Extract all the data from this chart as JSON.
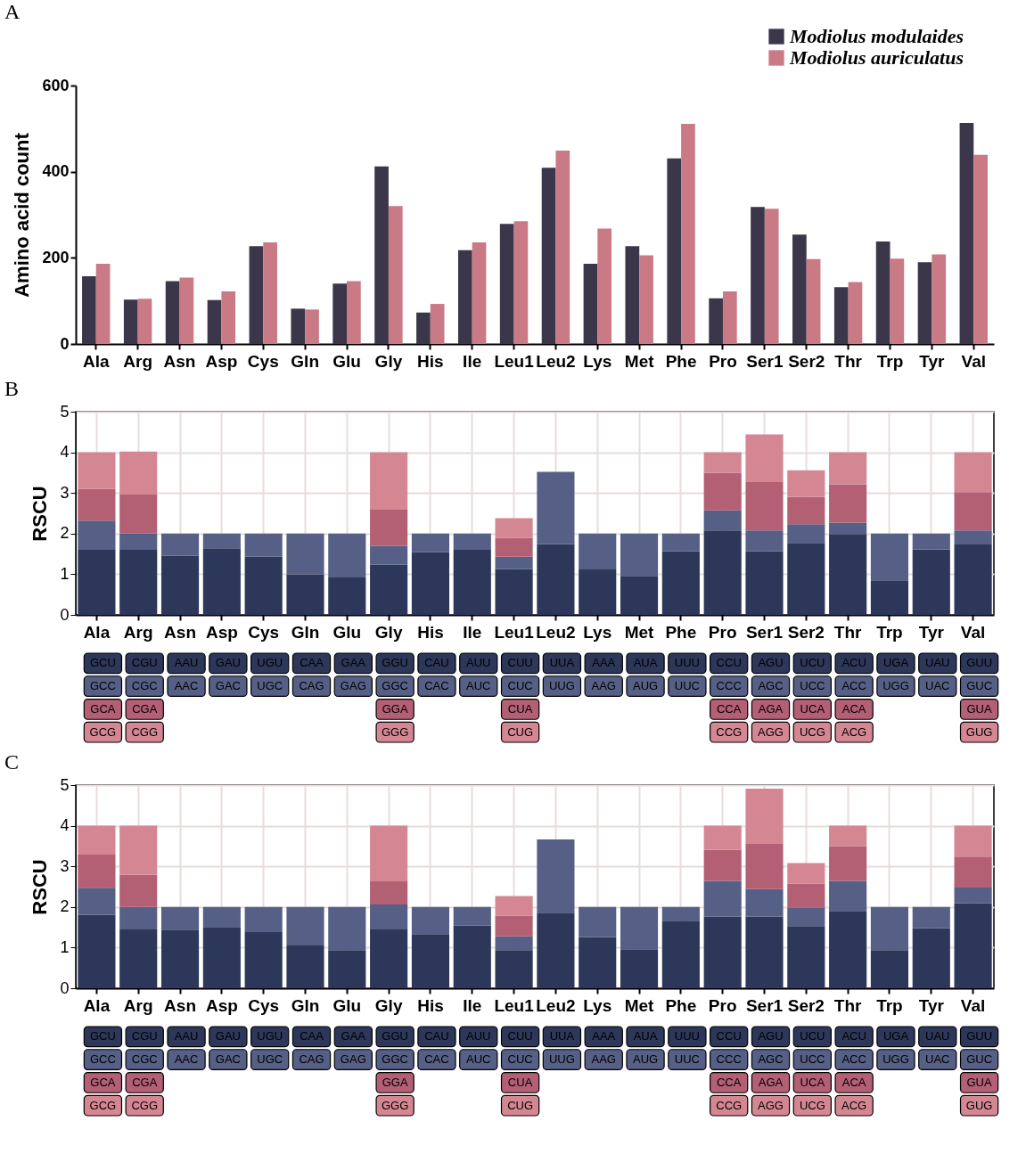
{
  "chart_data": [
    {
      "type": "bar",
      "title": "A",
      "ylabel": "Amino acid count",
      "categories": [
        "Ala",
        "Arg",
        "Asn",
        "Asp",
        "Cys",
        "Gln",
        "Glu",
        "Gly",
        "His",
        "Ile",
        "Leu1",
        "Leu2",
        "Lys",
        "Met",
        "Phe",
        "Pro",
        "Ser1",
        "Ser2",
        "Thr",
        "Trp",
        "Tyr",
        "Val"
      ],
      "series": [
        {
          "name": "Modiolus modulaides",
          "color": "#3b3649",
          "values": [
            157,
            103,
            146,
            102,
            227,
            82,
            140,
            412,
            73,
            218,
            279,
            409,
            186,
            227,
            431,
            106,
            318,
            254,
            132,
            238,
            190,
            513
          ]
        },
        {
          "name": "Modiolus auriculatus",
          "color": "#c97a84",
          "values": [
            186,
            105,
            154,
            122,
            236,
            80,
            146,
            320,
            93,
            236,
            285,
            449,
            268,
            206,
            511,
            122,
            314,
            197,
            144,
            198,
            208,
            439
          ]
        }
      ],
      "ylim": [
        0,
        600
      ],
      "yticks": [
        0,
        200,
        400,
        600
      ],
      "legend": "top right"
    },
    {
      "type": "bar",
      "stacked": true,
      "title": "B",
      "ylabel": "RSCU",
      "categories": [
        "Ala",
        "Arg",
        "Asn",
        "Asp",
        "Cys",
        "Gln",
        "Glu",
        "Gly",
        "His",
        "Ile",
        "Leu1",
        "Leu2",
        "Lys",
        "Met",
        "Phe",
        "Pro",
        "Ser1",
        "Ser2",
        "Thr",
        "Trp",
        "Tyr",
        "Val"
      ],
      "series": [
        {
          "color": "#2c3759",
          "values": [
            1.6,
            1.6,
            1.46,
            1.64,
            1.43,
            1.0,
            0.92,
            1.24,
            1.54,
            1.6,
            1.13,
            1.74,
            1.12,
            0.96,
            1.56,
            2.08,
            1.56,
            1.77,
            1.99,
            0.85,
            1.61,
            1.73
          ]
        },
        {
          "color": "#565f85",
          "values": [
            0.72,
            0.4,
            0.54,
            0.36,
            0.57,
            1.0,
            1.08,
            0.46,
            0.46,
            0.4,
            0.3,
            1.78,
            0.88,
            1.04,
            0.44,
            0.49,
            0.52,
            0.46,
            0.28,
            1.15,
            0.39,
            0.35
          ]
        },
        {
          "color": "#b35f74",
          "values": [
            0.78,
            0.96,
            null,
            null,
            null,
            null,
            null,
            0.89,
            null,
            null,
            0.46,
            null,
            null,
            null,
            null,
            0.93,
            1.19,
            0.67,
            0.94,
            null,
            null,
            0.94
          ]
        },
        {
          "color": "#d48793",
          "values": [
            0.9,
            1.06,
            null,
            null,
            null,
            null,
            null,
            1.41,
            null,
            null,
            0.49,
            null,
            null,
            null,
            null,
            0.5,
            1.17,
            0.66,
            0.79,
            null,
            null,
            0.98
          ]
        }
      ],
      "ylim": [
        0,
        5
      ],
      "yticks": [
        0,
        1,
        2,
        3,
        4,
        5
      ],
      "grid": true
    },
    {
      "type": "other",
      "colors": [
        "#2c3759",
        "#565f85",
        "#b35f74",
        "#d48793"
      ],
      "cell_labels": [
        [
          "GCU",
          "CGU",
          "AAU",
          "GAU",
          "UGU",
          "CAA",
          "GAA",
          "GGU",
          "CAU",
          "AUU",
          "CUU",
          "UUA",
          "AAA",
          "AUA",
          "UUU",
          "CCU",
          "AGU",
          "UCU",
          "ACU",
          "UGA",
          "UAU",
          "GUU"
        ],
        [
          "GCC",
          "CGC",
          "AAC",
          "GAC",
          "UGC",
          "CAG",
          "GAG",
          "GGC",
          "CAC",
          "AUC",
          "CUC",
          "UUG",
          "AAG",
          "AUG",
          "UUC",
          "CCC",
          "AGC",
          "UCC",
          "ACC",
          "UGG",
          "UAC",
          "GUC"
        ],
        [
          "GCA",
          "CGA",
          null,
          null,
          null,
          null,
          null,
          "GGA",
          null,
          null,
          "CUA",
          null,
          null,
          null,
          null,
          "CCA",
          "AGA",
          "UCA",
          "ACA",
          null,
          null,
          "GUA"
        ],
        [
          "GCG",
          "CGG",
          null,
          null,
          null,
          null,
          null,
          "GGG",
          null,
          null,
          "CUG",
          null,
          null,
          null,
          null,
          "CCG",
          "AGG",
          "UCG",
          "ACG",
          null,
          null,
          "GUG"
        ]
      ]
    },
    {
      "type": "bar",
      "stacked": true,
      "title": "C",
      "ylabel": "RSCU",
      "categories": [
        "Ala",
        "Arg",
        "Asn",
        "Asp",
        "Cys",
        "Gln",
        "Glu",
        "Gly",
        "His",
        "Ile",
        "Leu1",
        "Leu2",
        "Lys",
        "Met",
        "Phe",
        "Pro",
        "Ser1",
        "Ser2",
        "Thr",
        "Trp",
        "Tyr",
        "Val"
      ],
      "series": [
        {
          "color": "#2c3759",
          "values": [
            1.81,
            1.45,
            1.44,
            1.51,
            1.38,
            1.05,
            0.94,
            1.45,
            1.33,
            1.54,
            0.94,
            1.86,
            1.26,
            0.96,
            1.66,
            1.76,
            1.76,
            1.53,
            1.9,
            0.94,
            1.48,
            2.09
          ]
        },
        {
          "color": "#565f85",
          "values": [
            0.66,
            0.55,
            0.56,
            0.49,
            0.62,
            0.95,
            1.06,
            0.61,
            0.67,
            0.46,
            0.34,
            1.8,
            0.74,
            1.04,
            0.34,
            0.88,
            0.68,
            0.46,
            0.74,
            1.06,
            0.52,
            0.39
          ]
        },
        {
          "color": "#b35f74",
          "values": [
            0.82,
            0.79,
            null,
            null,
            null,
            null,
            null,
            0.57,
            null,
            null,
            0.51,
            null,
            null,
            null,
            null,
            0.77,
            1.11,
            0.58,
            0.86,
            null,
            null,
            0.76
          ]
        },
        {
          "color": "#d48793",
          "values": [
            0.71,
            1.21,
            null,
            null,
            null,
            null,
            null,
            1.37,
            null,
            null,
            0.48,
            null,
            null,
            null,
            null,
            0.59,
            1.36,
            0.51,
            0.5,
            null,
            null,
            0.76
          ]
        }
      ],
      "ylim": [
        0,
        5
      ],
      "yticks": [
        0,
        1,
        2,
        3,
        4,
        5
      ],
      "grid": true
    },
    {
      "type": "other",
      "colors": [
        "#2c3759",
        "#565f85",
        "#b35f74",
        "#d48793"
      ],
      "cell_labels": [
        [
          "GCU",
          "CGU",
          "AAU",
          "GAU",
          "UGU",
          "CAA",
          "GAA",
          "GGU",
          "CAU",
          "AUU",
          "CUU",
          "UUA",
          "AAA",
          "AUA",
          "UUU",
          "CCU",
          "AGU",
          "UCU",
          "ACU",
          "UGA",
          "UAU",
          "GUU"
        ],
        [
          "GCC",
          "CGC",
          "AAC",
          "GAC",
          "UGC",
          "CAG",
          "GAG",
          "GGC",
          "CAC",
          "AUC",
          "CUC",
          "UUG",
          "AAG",
          "AUG",
          "UUC",
          "CCC",
          "AGC",
          "UCC",
          "ACC",
          "UGG",
          "UAC",
          "GUC"
        ],
        [
          "GCA",
          "CGA",
          null,
          null,
          null,
          null,
          null,
          "GGA",
          null,
          null,
          "CUA",
          null,
          null,
          null,
          null,
          "CCA",
          "AGA",
          "UCA",
          "ACA",
          null,
          null,
          "GUA"
        ],
        [
          "GCG",
          "CGG",
          null,
          null,
          null,
          null,
          null,
          "GGG",
          null,
          null,
          "CUG",
          null,
          null,
          null,
          null,
          "CCG",
          "AGG",
          "UCG",
          "ACG",
          null,
          null,
          "GUG"
        ]
      ]
    }
  ]
}
